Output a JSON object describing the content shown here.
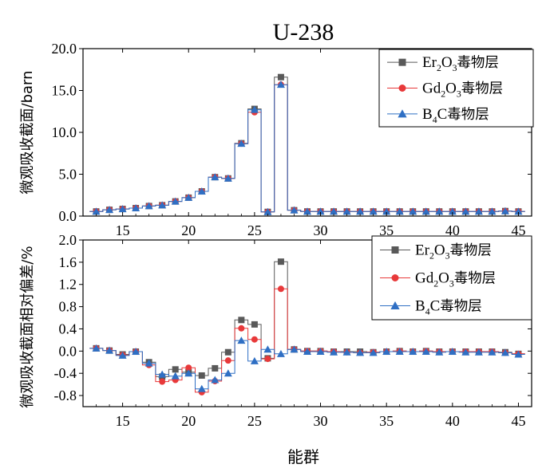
{
  "figure": {
    "title": "U-238",
    "xlabel": "能群"
  },
  "legend": {
    "suffix": "毒物层",
    "entries": [
      {
        "main": "Er",
        "sub": "2",
        "main2": "O",
        "sub2": "3"
      },
      {
        "main": "Gd",
        "sub": "2",
        "main2": "O",
        "sub2": "3"
      },
      {
        "main": "B",
        "sub": "4",
        "main2": "C",
        "sub2": ""
      }
    ]
  },
  "chart_data": [
    {
      "type": "line",
      "title": "U-238",
      "xlabel": "",
      "ylabel": "微观吸收截面/barn",
      "xlim": [
        12,
        46
      ],
      "ylim": [
        0,
        20
      ],
      "xticks": [
        15,
        20,
        25,
        30,
        35,
        40,
        45
      ],
      "yticks": [
        0.0,
        5.0,
        10.0,
        15.0,
        20.0
      ],
      "ytick_labels": [
        "0.0",
        "5.0",
        "10.0",
        "15.0",
        "20.0"
      ],
      "legend_position": "top-right",
      "x": [
        13,
        14,
        15,
        16,
        17,
        18,
        19,
        20,
        21,
        22,
        23,
        24,
        25,
        26,
        27,
        28,
        29,
        30,
        31,
        32,
        33,
        34,
        35,
        36,
        37,
        38,
        39,
        40,
        41,
        42,
        43,
        44,
        45
      ],
      "series": [
        {
          "name": "Er2O3毒物层",
          "color": "#595959",
          "marker": "square",
          "values": [
            0.55,
            0.75,
            0.85,
            0.95,
            1.2,
            1.3,
            1.75,
            2.2,
            2.95,
            4.65,
            4.5,
            8.7,
            12.8,
            0.5,
            16.6,
            0.7,
            0.55,
            0.55,
            0.55,
            0.55,
            0.55,
            0.55,
            0.55,
            0.55,
            0.55,
            0.55,
            0.55,
            0.55,
            0.55,
            0.55,
            0.55,
            0.6,
            0.55
          ]
        },
        {
          "name": "Gd2O3毒物层",
          "color": "#e8393a",
          "marker": "circle",
          "values": [
            0.55,
            0.75,
            0.85,
            0.95,
            1.2,
            1.3,
            1.75,
            2.2,
            2.95,
            4.65,
            4.5,
            8.65,
            12.4,
            0.5,
            15.7,
            0.7,
            0.55,
            0.55,
            0.55,
            0.55,
            0.55,
            0.55,
            0.55,
            0.55,
            0.55,
            0.55,
            0.55,
            0.55,
            0.55,
            0.55,
            0.55,
            0.6,
            0.55
          ]
        },
        {
          "name": "B4C毒物层",
          "color": "#2f6fc4",
          "marker": "triangle",
          "values": [
            0.55,
            0.75,
            0.85,
            0.95,
            1.2,
            1.3,
            1.75,
            2.2,
            2.95,
            4.65,
            4.5,
            8.65,
            12.7,
            0.5,
            15.7,
            0.7,
            0.55,
            0.55,
            0.55,
            0.55,
            0.55,
            0.55,
            0.55,
            0.55,
            0.55,
            0.55,
            0.55,
            0.55,
            0.55,
            0.55,
            0.55,
            0.6,
            0.55
          ]
        }
      ]
    },
    {
      "type": "line",
      "title": "",
      "xlabel": "能群",
      "ylabel": "微观吸收截面相对偏差/%",
      "xlim": [
        12,
        46
      ],
      "ylim": [
        -1.0,
        2.0
      ],
      "xticks": [
        15,
        20,
        25,
        30,
        35,
        40,
        45
      ],
      "yticks": [
        -0.8,
        -0.4,
        0.0,
        0.4,
        0.8,
        1.2,
        1.6,
        2.0
      ],
      "ytick_labels": [
        "-0.8",
        "-0.4",
        "0.0",
        "0.4",
        "0.8",
        "1.2",
        "1.6",
        "2.0"
      ],
      "legend_position": "top-right",
      "x": [
        13,
        14,
        15,
        16,
        17,
        18,
        19,
        20,
        21,
        22,
        23,
        24,
        25,
        26,
        27,
        28,
        29,
        30,
        31,
        32,
        33,
        34,
        35,
        36,
        37,
        38,
        39,
        40,
        41,
        42,
        43,
        44,
        45
      ],
      "series": [
        {
          "name": "Er2O3毒物层",
          "color": "#595959",
          "marker": "square",
          "values": [
            0.05,
            0.01,
            -0.06,
            -0.01,
            -0.2,
            -0.46,
            -0.33,
            -0.38,
            -0.44,
            -0.31,
            -0.02,
            0.56,
            0.48,
            -0.13,
            1.61,
            0.03,
            0.0,
            0.0,
            -0.01,
            -0.01,
            -0.01,
            -0.02,
            -0.01,
            0.0,
            -0.01,
            0.0,
            -0.01,
            -0.01,
            -0.01,
            -0.01,
            -0.01,
            -0.02,
            -0.05
          ]
        },
        {
          "name": "Gd2O3毒物层",
          "color": "#e8393a",
          "marker": "circle",
          "values": [
            0.05,
            0.01,
            -0.07,
            -0.01,
            -0.25,
            -0.55,
            -0.52,
            -0.3,
            -0.74,
            -0.54,
            -0.17,
            0.41,
            0.21,
            -0.14,
            1.12,
            0.03,
            0.0,
            0.0,
            -0.01,
            -0.02,
            -0.03,
            -0.02,
            -0.01,
            0.0,
            -0.01,
            0.0,
            -0.01,
            -0.01,
            -0.01,
            -0.01,
            -0.01,
            -0.03,
            -0.05
          ]
        },
        {
          "name": "B4C毒物层",
          "color": "#2f6fc4",
          "marker": "triangle",
          "values": [
            0.05,
            0.01,
            -0.08,
            -0.01,
            -0.22,
            -0.42,
            -0.45,
            -0.4,
            -0.68,
            -0.52,
            -0.4,
            0.19,
            -0.18,
            0.03,
            -0.05,
            0.03,
            -0.01,
            -0.01,
            -0.02,
            -0.02,
            -0.03,
            -0.03,
            -0.01,
            -0.01,
            -0.01,
            -0.01,
            -0.02,
            -0.01,
            -0.02,
            -0.02,
            -0.02,
            -0.03,
            -0.06
          ]
        }
      ]
    }
  ]
}
